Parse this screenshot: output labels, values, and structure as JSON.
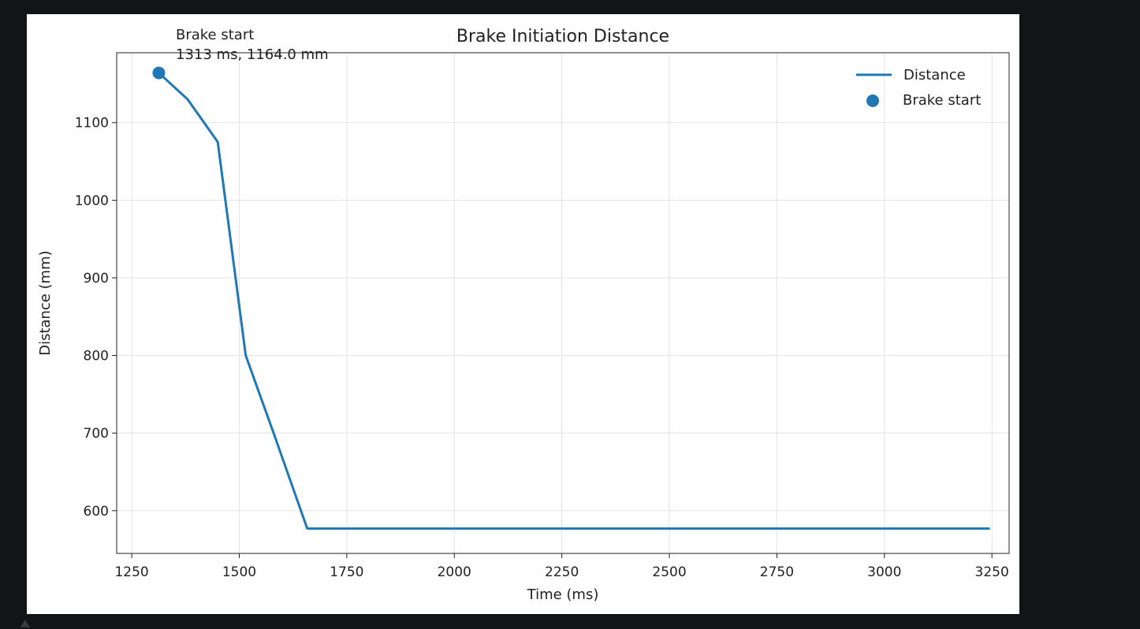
{
  "chart_data": {
    "type": "line",
    "title": "Brake Initiation Distance",
    "xlabel": "Time (ms)",
    "ylabel": "Distance (mm)",
    "xlim": [
      1215,
      3290
    ],
    "ylim": [
      545,
      1190
    ],
    "xticks": [
      1250,
      1500,
      1750,
      2000,
      2250,
      2500,
      2750,
      3000,
      3250
    ],
    "yticks": [
      600,
      700,
      800,
      900,
      1000,
      1100
    ],
    "grid": true,
    "legend_position": "top-right",
    "colors": {
      "series": "#1f77b4"
    },
    "series": [
      {
        "name": "Distance",
        "kind": "line",
        "x": [
          1313,
          1380,
          1450,
          1515,
          1580,
          1658,
          1750,
          2000,
          2500,
          3000,
          3245
        ],
        "y": [
          1164,
          1130,
          1075,
          800,
          700,
          577,
          577,
          577,
          577,
          577,
          577
        ]
      },
      {
        "name": "Brake start",
        "kind": "scatter",
        "x": [
          1313
        ],
        "y": [
          1164.0
        ]
      }
    ],
    "annotation": {
      "line1": "Brake start",
      "line2": "1313 ms, 1164.0 mm",
      "x": 1313,
      "y": 1164.0
    }
  }
}
